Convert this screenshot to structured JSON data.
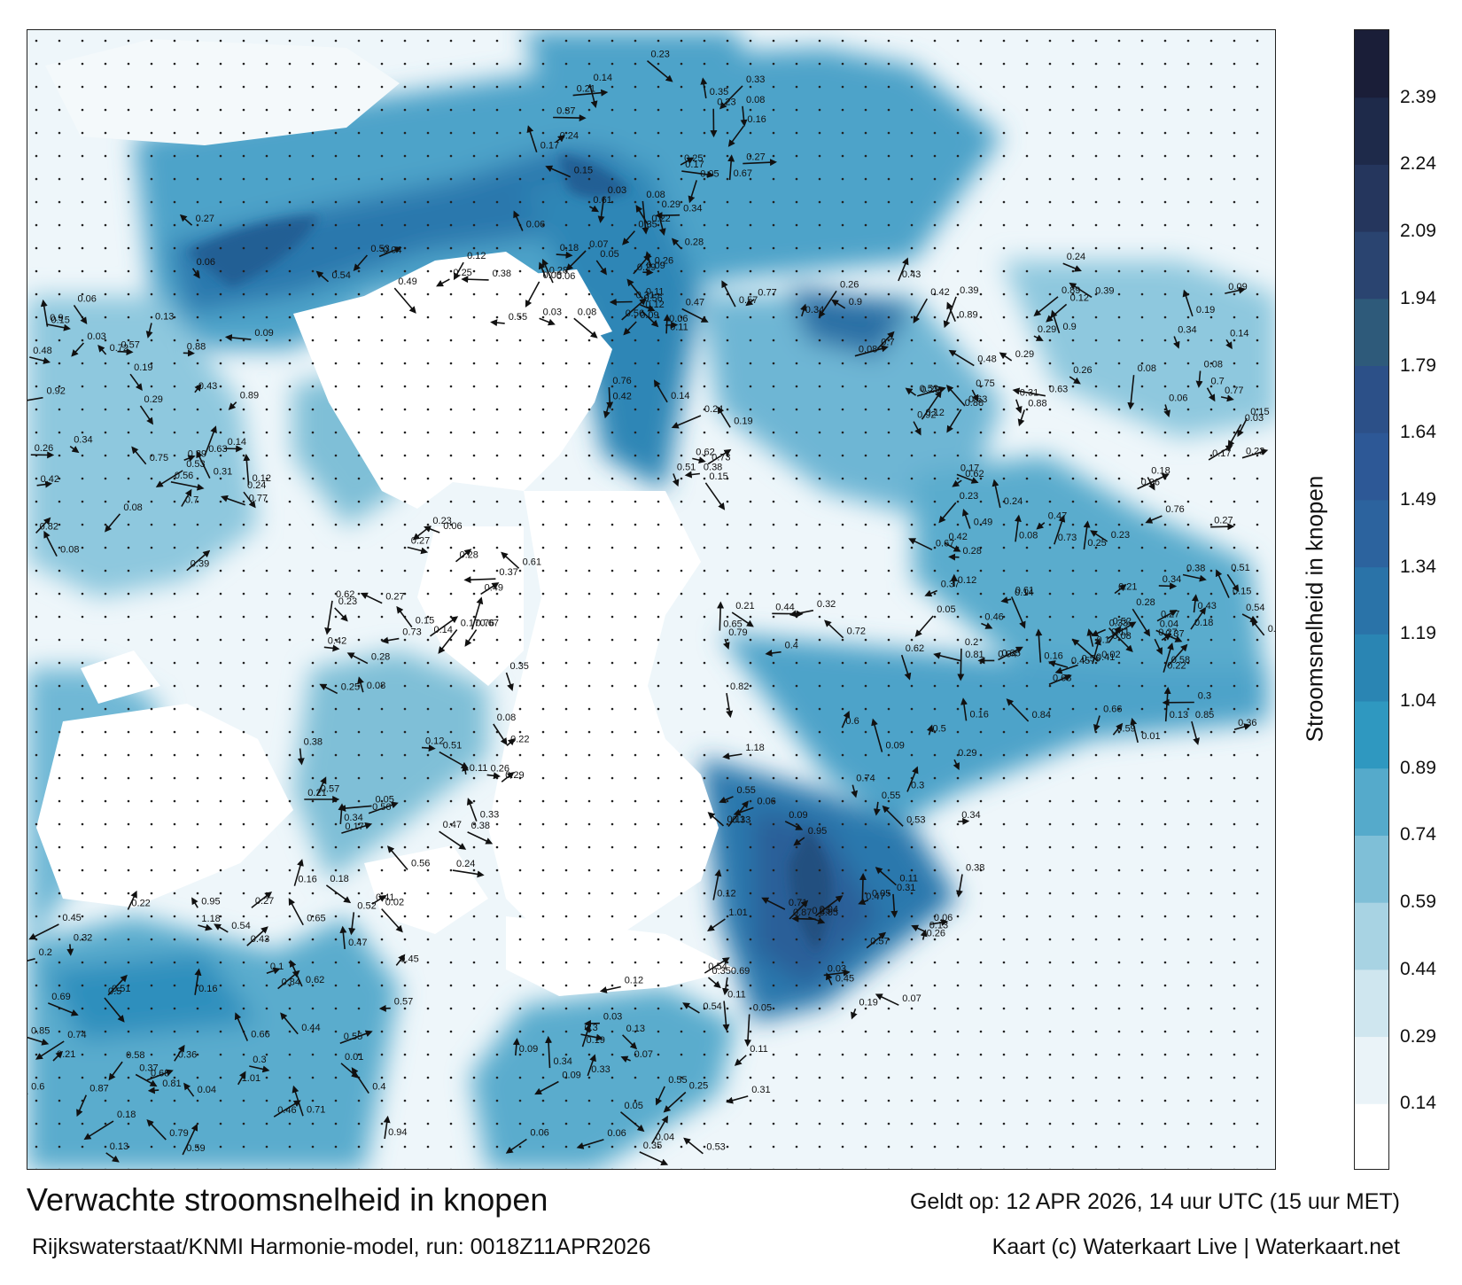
{
  "map": {
    "title": "Verwachte stroomsnelheid in knopen",
    "source": "Rijkswaterstaat/KNMI Harmonie-model, run: 0018Z11APR2026",
    "valid": "Geldt op: 12 APR 2026, 14 uur UTC (15 uur MET)",
    "credit": "Kaart (c) Waterkaart Live | Waterkaart.net"
  },
  "legend": {
    "label": "Stroomsnelheid in knopen",
    "ticks": [
      "0.14",
      "0.29",
      "0.44",
      "0.59",
      "0.74",
      "0.89",
      "1.04",
      "1.19",
      "1.34",
      "1.49",
      "1.64",
      "1.79",
      "1.94",
      "2.09",
      "2.24",
      "2.39"
    ],
    "colors": [
      "#ffffff",
      "#eaf3f8",
      "#cfe6ef",
      "#a8d3e3",
      "#7fbfd7",
      "#55aacb",
      "#2f98c0",
      "#2a85b3",
      "#2a73a8",
      "#2c639e",
      "#2d5896",
      "#2c5088",
      "#2e5a7a",
      "#2a4470",
      "#25365d",
      "#1e2a4a",
      "#1a1e38"
    ]
  },
  "labels": [
    "0.13",
    "0.05",
    "0.06",
    "0.07",
    "0.06",
    "0.12",
    "0.11",
    "0.09",
    "0.05",
    "0.04",
    "0.03",
    "0.25",
    "0.35",
    "0.55",
    "0.53",
    "0.54",
    "0.29",
    "0.38",
    "0.26",
    "0.12",
    "0.08",
    "0.06",
    "0.28",
    "0.49",
    "0.56",
    "0.18",
    "0.27",
    "0.28",
    "0.33",
    "0.37",
    "0.17",
    "0.15",
    "0.14",
    "0.17",
    "0.23",
    "0.24",
    "0.27",
    "0.23",
    "0.08",
    "0.16",
    "0.35",
    "0.21",
    "0.25",
    "0.34",
    "0.38",
    "0.22",
    "0.11",
    "0.05",
    "0.42",
    "0.47",
    "0.73",
    "0.67",
    "0.62",
    "0.61",
    "0.51",
    "0.76",
    "0.57",
    "0.56",
    "0.15",
    "0.29",
    "0.03",
    "0.06",
    "0.09",
    "0.08",
    "0.24",
    "0.19",
    "0.31",
    "0.14",
    "0.12",
    "0.08",
    "0.26",
    "0.29",
    "0.34",
    "0.63",
    "0.7",
    "0.89",
    "0.9",
    "0.88",
    "0.39",
    "0.77",
    "0.92",
    "0.75",
    "0.43",
    "0.42",
    "0.48",
    "0.53",
    "0.82",
    "0.72",
    "0.37",
    "0.41",
    "0.27",
    "0.58",
    "0.59",
    "0.52",
    "0.54",
    "0.36",
    "0.32",
    "0.4",
    "0.21",
    "0.16",
    "0.02",
    "0.01",
    "0.04",
    "0.45",
    "0.46",
    "0.62",
    "0.44",
    "0.43",
    "0.5",
    "0.51",
    "0.65",
    "0.6",
    "0.2",
    "0.3",
    "0.13",
    "0.1",
    "0.18",
    "0.22",
    "0.79",
    "0.84",
    "0.85",
    "0.81",
    "0.94",
    "0.66",
    "0.68",
    "0.71",
    "0.74",
    "0.87",
    "0.95",
    "1.18",
    "1.01",
    "0.69",
    "0.55",
    "0.47",
    "0.45",
    "0.57",
    "0.34",
    "0.33",
    "0.31",
    "0.3",
    "0.19",
    "0.11",
    "0.09"
  ]
}
